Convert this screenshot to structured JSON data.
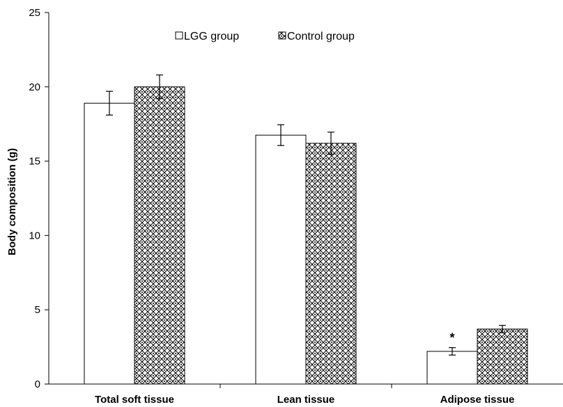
{
  "chart_data": {
    "type": "bar",
    "title": "",
    "xlabel": "",
    "ylabel": "Body composition (g)",
    "ylim": [
      0,
      25
    ],
    "yticks": [
      0,
      5,
      10,
      15,
      20,
      25
    ],
    "categories": [
      "Total soft tissue",
      "Lean tissue",
      "Adipose tissue"
    ],
    "series": [
      {
        "name": "LGG group",
        "values": [
          18.9,
          16.75,
          2.2
        ],
        "errors": [
          0.8,
          0.7,
          0.25
        ],
        "pattern": "none",
        "fill": "#ffffff"
      },
      {
        "name": "Control group",
        "values": [
          20.0,
          16.2,
          3.7
        ],
        "errors": [
          0.8,
          0.75,
          0.25
        ],
        "pattern": "crosshatch",
        "fill": "#ffffff"
      }
    ],
    "annotations": [
      {
        "category": "Adipose tissue",
        "series": "LGG group",
        "text": "*"
      }
    ],
    "legend": "top-center",
    "grid": false
  }
}
